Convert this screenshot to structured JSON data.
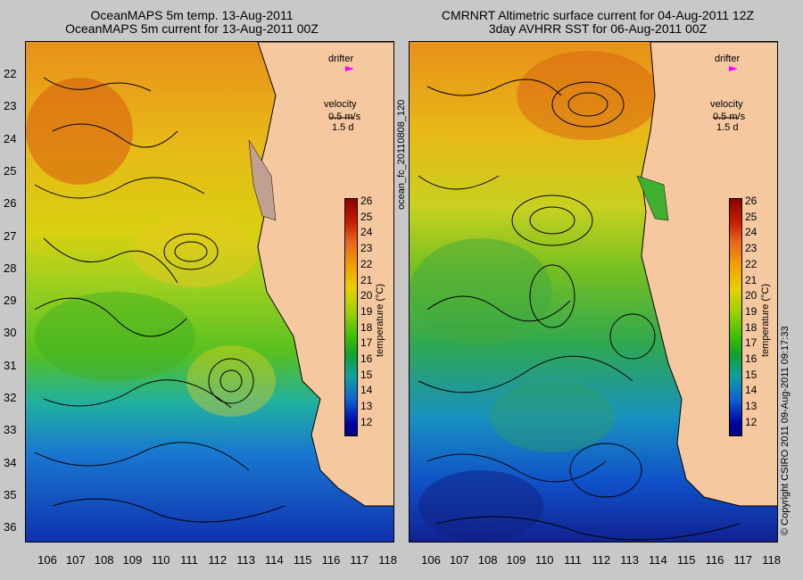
{
  "left": {
    "title1": "OceanMAPS 5m temp. 13-Aug-2011",
    "title2": "OceanMAPS 5m current for 13-Aug-2011 00Z"
  },
  "right": {
    "title1": "CMRNRT Altimetric surface current for 04-Aug-2011 12Z",
    "title2": "3day AVHRR SST for 06-Aug-2011 00Z"
  },
  "legend": {
    "drifter": "drifter",
    "velocity": "velocity",
    "scale": "0.5 m/s",
    "duration": "1.5 d"
  },
  "colorbar": {
    "label": "temperature (°C)",
    "ticks": [
      "26",
      "25",
      "24",
      "23",
      "22",
      "21",
      "20",
      "19",
      "18",
      "17",
      "16",
      "15",
      "14",
      "13",
      "12"
    ]
  },
  "y_ticks": [
    "22",
    "23",
    "24",
    "25",
    "26",
    "27",
    "28",
    "29",
    "30",
    "31",
    "32",
    "33",
    "34",
    "35",
    "36"
  ],
  "x_ticks": [
    "106",
    "107",
    "108",
    "109",
    "110",
    "111",
    "112",
    "113",
    "114",
    "115",
    "116",
    "117",
    "118"
  ],
  "side_label": "ocean_fc_20110808_120",
  "copyright": "© Copyright CSIRO 2011   09-Aug-2011 09:17:33",
  "colors": {
    "land": "#f5c8a0",
    "drifter": "#ff00ff"
  }
}
